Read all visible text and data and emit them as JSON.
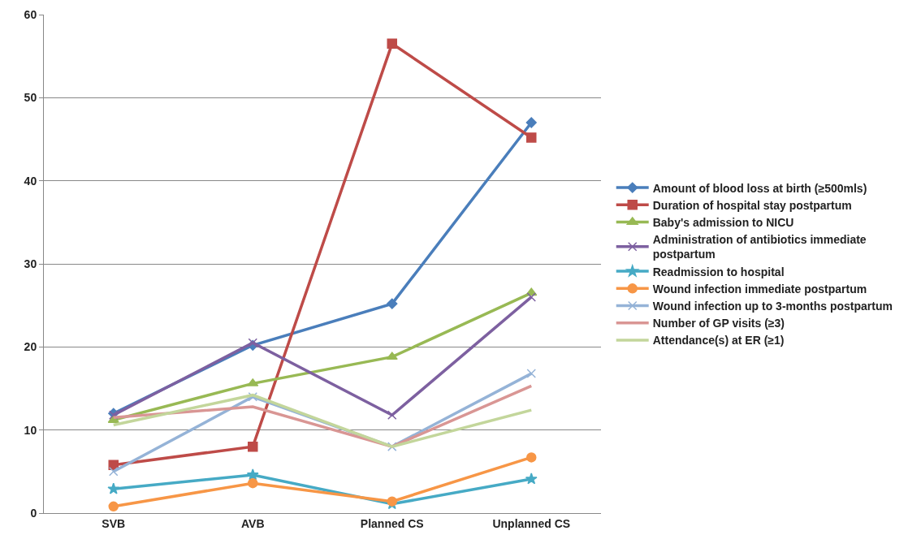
{
  "chart_data": {
    "type": "line",
    "categories": [
      "SVB",
      "AVB",
      "Planned CS",
      "Unplanned CS"
    ],
    "ylim": [
      0,
      60
    ],
    "yticks": [
      0,
      10,
      20,
      30,
      40,
      50,
      60
    ],
    "grid": "y",
    "legend": "right",
    "line_style": "solid",
    "series": [
      {
        "name": "Amount of blood loss at birth (≥500mls)",
        "color": "#4a7ebb",
        "marker": "diamond",
        "values": [
          12.0,
          20.2,
          25.2,
          47.0
        ]
      },
      {
        "name": "Duration of hospital stay postpartum",
        "color": "#be4b48",
        "marker": "square",
        "values": [
          5.8,
          8.0,
          56.5,
          45.2
        ]
      },
      {
        "name": "Baby's admission to NICU",
        "color": "#98b954",
        "marker": "triangle",
        "values": [
          11.2,
          15.6,
          18.8,
          26.5
        ]
      },
      {
        "name": "Administration of antibiotics immediate postpartum",
        "color": "#7d60a0",
        "marker": "cross",
        "values": [
          11.8,
          20.5,
          11.8,
          26.0
        ]
      },
      {
        "name": "Readmission to hospital",
        "color": "#46aac5",
        "marker": "star",
        "values": [
          2.9,
          4.6,
          1.1,
          4.1
        ]
      },
      {
        "name": "Wound infection immediate postpartum",
        "color": "#f79646",
        "marker": "circle",
        "values": [
          0.8,
          3.6,
          1.4,
          6.7
        ]
      },
      {
        "name": "Wound infection up to 3-months postpartum",
        "color": "#95b3d7",
        "marker": "cross",
        "values": [
          5.0,
          14.0,
          8.0,
          16.8
        ]
      },
      {
        "name": "Number of GP visits (≥3)",
        "color": "#d99694",
        "marker": "none",
        "values": [
          11.5,
          12.8,
          8.0,
          15.3
        ]
      },
      {
        "name": "Attendance(s) at ER (≥1)",
        "color": "#c3d69b",
        "marker": "none",
        "values": [
          10.6,
          14.2,
          8.0,
          12.4
        ]
      }
    ]
  }
}
